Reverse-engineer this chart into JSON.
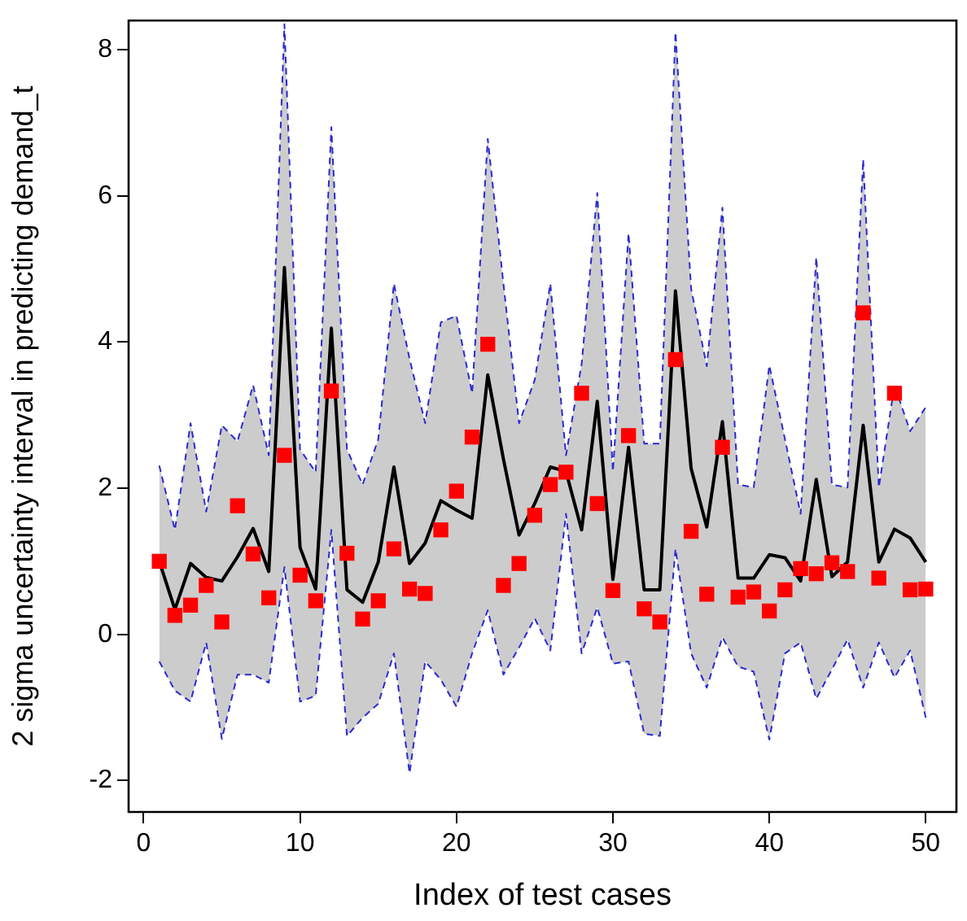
{
  "chart_data": {
    "type": "line",
    "xlabel": "Index of test cases",
    "ylabel": "2 sigma uncertainty interval in predicting demand_t",
    "x": [
      1,
      2,
      3,
      4,
      5,
      6,
      7,
      8,
      9,
      10,
      11,
      12,
      13,
      14,
      15,
      16,
      17,
      18,
      19,
      20,
      21,
      22,
      23,
      24,
      25,
      26,
      27,
      28,
      29,
      30,
      31,
      32,
      33,
      34,
      35,
      36,
      37,
      38,
      39,
      40,
      41,
      42,
      43,
      44,
      45,
      46,
      47,
      48,
      49,
      50
    ],
    "series": [
      {
        "color": "#000000",
        "marker": "none",
        "line_style": "solid",
        "values": [
          1.0,
          0.34,
          0.97,
          0.78,
          0.73,
          1.06,
          1.45,
          0.86,
          5.02,
          1.19,
          0.62,
          4.19,
          0.61,
          0.44,
          0.99,
          2.29,
          0.97,
          1.25,
          1.83,
          1.7,
          1.59,
          3.55,
          2.4,
          1.36,
          1.79,
          2.29,
          2.23,
          1.43,
          3.19,
          0.75,
          2.56,
          0.61,
          0.61,
          4.7,
          2.27,
          1.47,
          2.91,
          0.77,
          0.77,
          1.09,
          1.05,
          0.73,
          2.12,
          0.79,
          0.99,
          2.86,
          0.99,
          1.44,
          1.32,
          0.99
        ],
        "lower": [
          -0.37,
          -0.77,
          -0.92,
          -0.11,
          -1.43,
          -0.55,
          -0.55,
          -0.66,
          0.92,
          -0.92,
          -0.84,
          1.43,
          -1.39,
          -1.14,
          -0.95,
          -0.26,
          -1.9,
          -0.37,
          -0.62,
          -0.99,
          -0.26,
          0.33,
          -0.55,
          -0.18,
          0.22,
          -0.22,
          1.65,
          -0.26,
          0.37,
          -0.4,
          -0.37,
          -1.36,
          -1.39,
          1.17,
          -0.26,
          -0.73,
          -0.04,
          -0.44,
          -0.51,
          -1.44,
          -0.26,
          -0.11,
          -0.88,
          -0.48,
          -0.07,
          -0.73,
          -0.11,
          -0.59,
          -0.22,
          -1.14
        ],
        "upper": [
          2.31,
          1.43,
          2.89,
          1.68,
          2.86,
          2.64,
          3.41,
          2.45,
          8.35,
          2.53,
          2.22,
          6.94,
          2.53,
          2.05,
          2.67,
          4.8,
          3.77,
          2.89,
          4.27,
          4.36,
          3.3,
          6.78,
          4.8,
          2.89,
          3.48,
          4.8,
          2.45,
          3.7,
          6.04,
          2.23,
          5.49,
          2.61,
          2.61,
          8.24,
          4.73,
          3.67,
          5.84,
          2.05,
          2.01,
          3.68,
          2.67,
          1.65,
          5.16,
          2.05,
          2.01,
          6.5,
          2.01,
          3.41,
          2.78,
          3.11
        ]
      },
      {
        "type": "line",
        "color": "#2a2ad0",
        "marker": "none",
        "line_style": "dashed",
        "values": [
          2.31,
          1.43,
          2.89,
          1.68,
          2.86,
          2.64,
          3.41,
          2.45,
          8.35,
          2.53,
          2.22,
          6.94,
          2.53,
          2.05,
          2.67,
          4.8,
          3.77,
          2.89,
          4.27,
          4.36,
          3.3,
          6.78,
          4.8,
          2.89,
          3.48,
          4.8,
          2.45,
          3.7,
          6.04,
          2.23,
          5.49,
          2.61,
          2.61,
          8.24,
          4.73,
          3.67,
          5.84,
          2.05,
          2.01,
          3.68,
          2.67,
          1.65,
          5.16,
          2.05,
          2.01,
          6.5,
          2.01,
          3.41,
          2.78,
          3.11
        ]
      },
      {
        "type": "line",
        "color": "#2a2ad0",
        "marker": "none",
        "line_style": "dashed",
        "values": [
          -0.37,
          -0.77,
          -0.92,
          -0.11,
          -1.43,
          -0.55,
          -0.55,
          -0.66,
          0.92,
          -0.92,
          -0.84,
          1.43,
          -1.39,
          -1.14,
          -0.95,
          -0.26,
          -1.9,
          -0.37,
          -0.62,
          -0.99,
          -0.26,
          0.33,
          -0.55,
          -0.18,
          0.22,
          -0.22,
          1.65,
          -0.26,
          0.37,
          -0.4,
          -0.37,
          -1.36,
          -1.39,
          1.17,
          -0.26,
          -0.73,
          -0.04,
          -0.44,
          -0.51,
          -1.44,
          -0.26,
          -0.11,
          -0.88,
          -0.48,
          -0.07,
          -0.73,
          -0.11,
          -0.59,
          -0.22,
          -1.14
        ]
      },
      {
        "type": "scatter",
        "color": "#ff0000",
        "marker": "square",
        "values": [
          1.0,
          0.26,
          0.4,
          0.67,
          0.17,
          1.76,
          1.1,
          0.5,
          2.45,
          0.81,
          0.46,
          3.33,
          1.11,
          0.21,
          0.46,
          1.17,
          0.62,
          0.56,
          1.43,
          1.96,
          2.7,
          3.97,
          0.67,
          0.97,
          1.63,
          2.05,
          2.22,
          3.3,
          1.79,
          0.6,
          2.72,
          0.35,
          0.17,
          3.76,
          1.41,
          0.55,
          2.56,
          0.51,
          0.58,
          0.32,
          0.61,
          0.9,
          0.83,
          0.98,
          0.86,
          4.4,
          0.77,
          3.3,
          0.61,
          0.62
        ]
      }
    ],
    "xlim": [
      -0.96,
      51.96
    ],
    "xticks": [
      0,
      10,
      20,
      30,
      40,
      50
    ],
    "ylim": [
      -2.43,
      8.4
    ],
    "yticks": [
      -2,
      0,
      2,
      4,
      6,
      8
    ],
    "grid": false,
    "legend": false
  }
}
